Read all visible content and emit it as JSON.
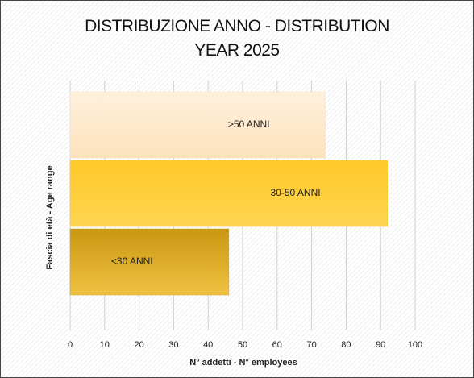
{
  "chart_data": {
    "type": "hbar",
    "title": "DISTRIBUZIONE ANNO - DISTRIBUTION YEAR 2025",
    "xlabel": "N° addetti - N° employees",
    "ylabel": "Fascia di età - Age range",
    "categories": [
      ">50 ANNI",
      "30-50 ANNI",
      "<30 ANNI"
    ],
    "values": [
      74,
      92,
      46
    ],
    "colors": [
      "#fde2bd",
      "#fec42a",
      "#d6a21c"
    ],
    "xlim": [
      0,
      100
    ],
    "xticks": [
      0,
      10,
      20,
      30,
      40,
      50,
      60,
      70,
      80,
      90,
      100
    ],
    "grid": true
  }
}
